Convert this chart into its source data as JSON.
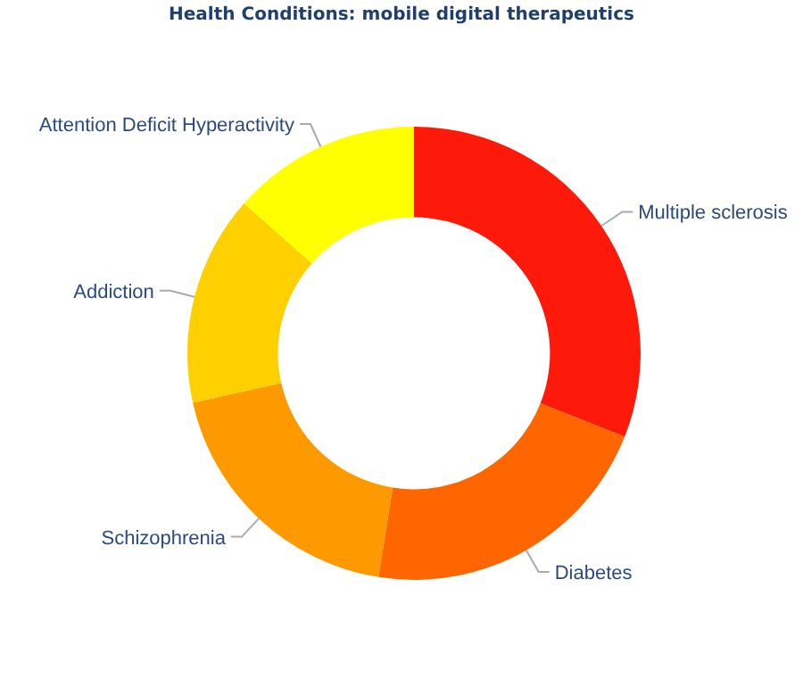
{
  "chart_data": {
    "type": "donut",
    "title": "Health Conditions: mobile digital therapeutics",
    "categories": [
      "Multiple sclerosis",
      "Diabetes",
      "Schizophrenia",
      "Addiction",
      "Attention Deficit Hyperactivity"
    ],
    "values": [
      31,
      21.5,
      19,
      15,
      13.5
    ],
    "colors": [
      "#fe1a0a",
      "#ff6600",
      "#ff9900",
      "#ffd000",
      "#ffff00"
    ],
    "legend": false
  }
}
